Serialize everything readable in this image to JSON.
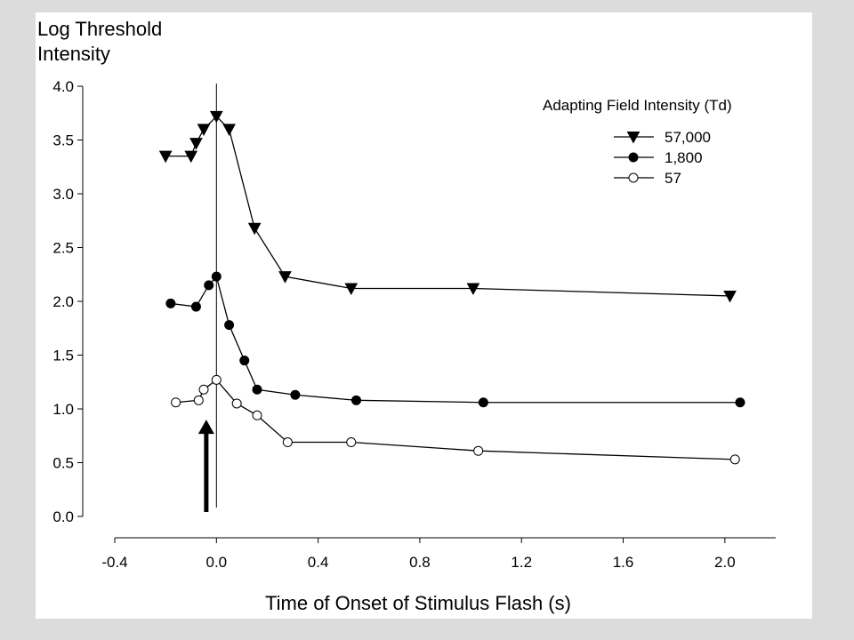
{
  "chart_data": {
    "type": "line",
    "ylabel_lines": [
      "Log Threshold",
      "Intensity"
    ],
    "xlabel": "Time of Onset of Stimulus Flash (s)",
    "xlim": [
      -0.4,
      2.2
    ],
    "ylim": [
      0.0,
      4.0
    ],
    "x_ticks": [
      -0.4,
      0.0,
      0.4,
      0.8,
      1.2,
      1.6,
      2.0
    ],
    "x_tick_labels": [
      "-0.4",
      "0.0",
      "0.4",
      "0.8",
      "1.2",
      "1.6",
      "2.0"
    ],
    "y_ticks": [
      0.0,
      0.5,
      1.0,
      1.5,
      2.0,
      2.5,
      3.0,
      3.5,
      4.0
    ],
    "y_tick_labels": [
      "0.0",
      "0.5",
      "1.0",
      "1.5",
      "2.0",
      "2.5",
      "3.0",
      "3.5",
      "4.0"
    ],
    "legend": {
      "title": "Adapting Field Intensity (Td)",
      "placement": "top-right"
    },
    "series": [
      {
        "name": "57,000",
        "marker": "triangle-down-filled",
        "x": [
          -0.2,
          -0.1,
          -0.08,
          -0.05,
          0.0,
          0.05,
          0.15,
          0.27,
          0.53,
          1.01,
          2.02
        ],
        "y": [
          3.35,
          3.35,
          3.47,
          3.6,
          3.72,
          3.6,
          2.68,
          2.23,
          2.12,
          2.12,
          2.05
        ]
      },
      {
        "name": "1,800",
        "marker": "circle-filled",
        "x": [
          -0.18,
          -0.08,
          -0.03,
          0.0,
          0.05,
          0.11,
          0.16,
          0.31,
          0.55,
          1.05,
          2.06
        ],
        "y": [
          1.98,
          1.95,
          2.15,
          2.23,
          1.78,
          1.45,
          1.18,
          1.13,
          1.08,
          1.06,
          1.06
        ]
      },
      {
        "name": "57",
        "marker": "circle-open",
        "x": [
          -0.16,
          -0.07,
          -0.05,
          0.0,
          0.08,
          0.16,
          0.28,
          0.53,
          1.03,
          2.04
        ],
        "y": [
          1.06,
          1.08,
          1.18,
          1.27,
          1.05,
          0.94,
          0.69,
          0.69,
          0.61,
          0.53
        ]
      }
    ],
    "annotations": {
      "onset_line_x": 0.0,
      "arrow": {
        "x": -0.04,
        "y_from": 0.0,
        "y_to": 0.9,
        "direction": "up"
      }
    }
  }
}
